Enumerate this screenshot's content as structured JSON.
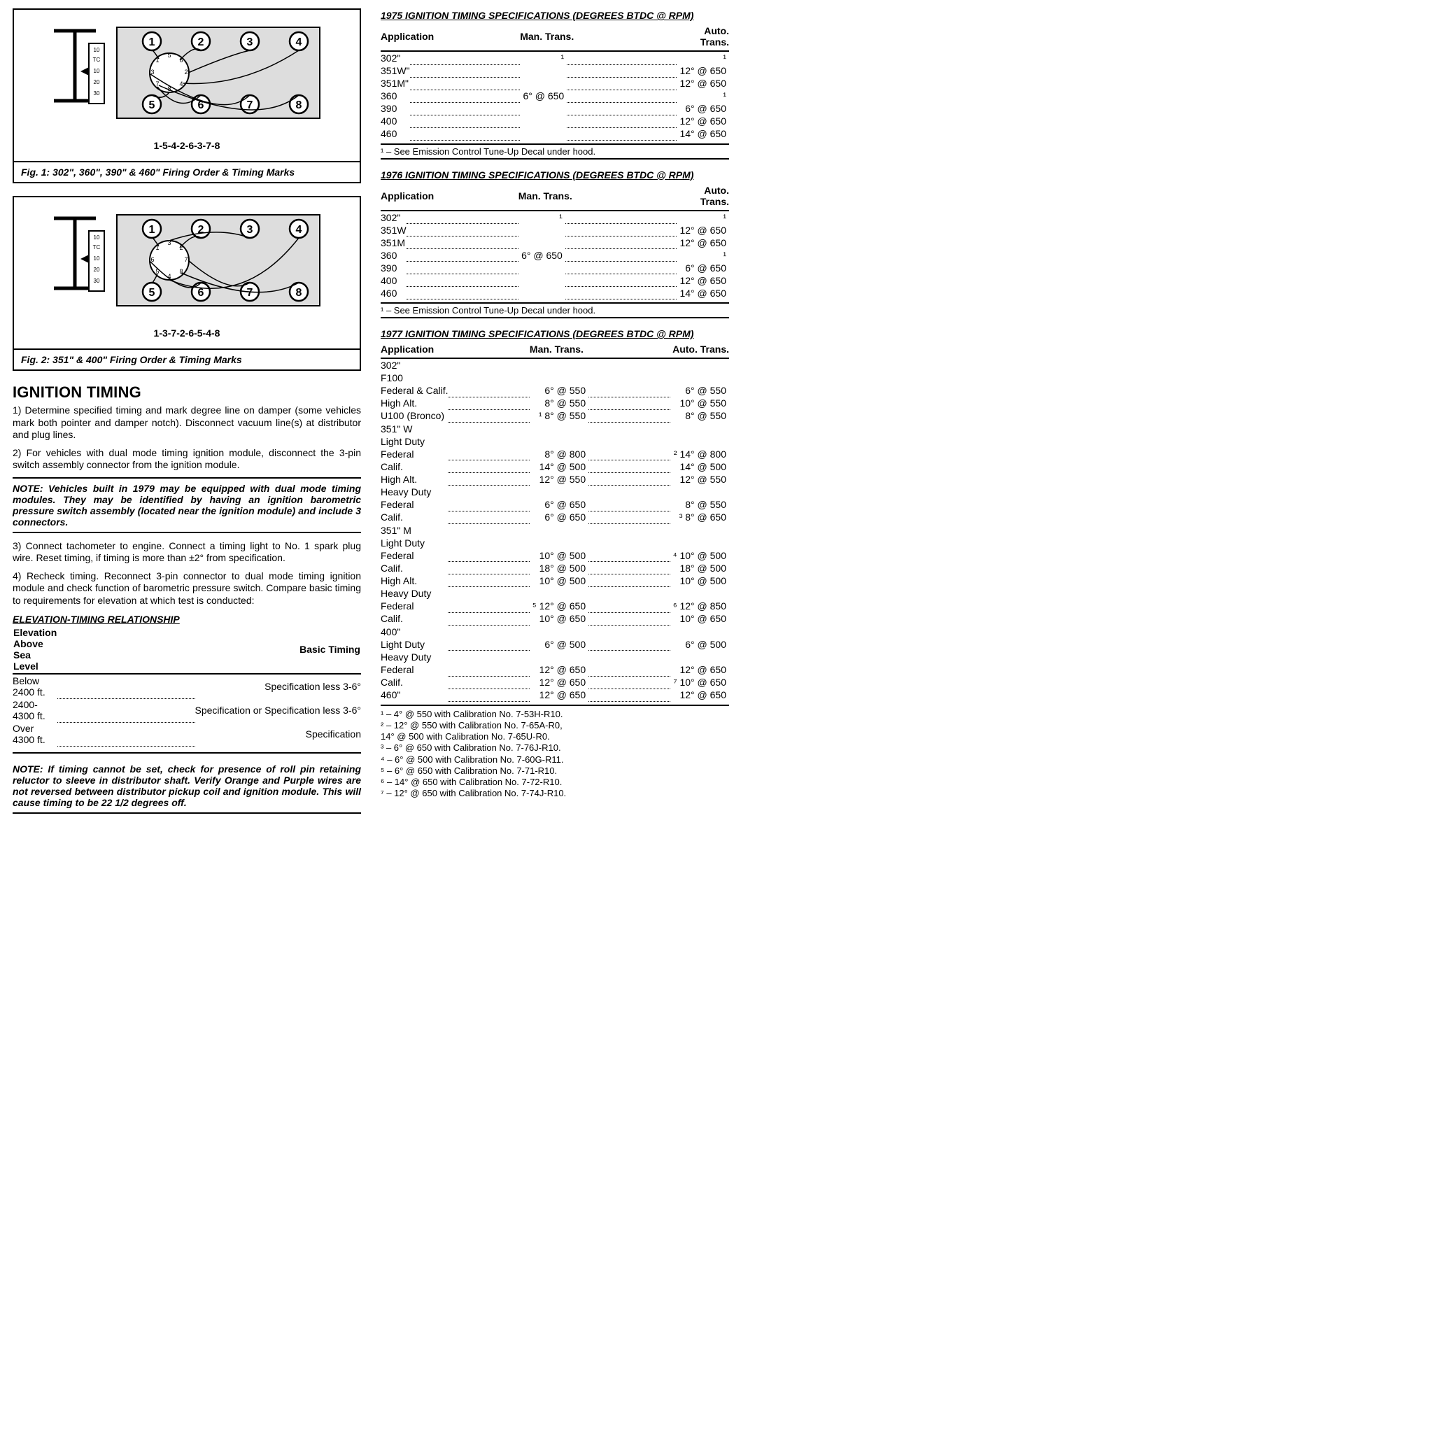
{
  "fig1": {
    "caption": "Fig. 1: 302\", 360\", 390\" & 460\" Firing Order & Timing Marks",
    "firing_order": "1-5-4-2-6-3-7-8",
    "cylinders_top": [
      1,
      2,
      3,
      4
    ],
    "cylinders_bottom": [
      5,
      6,
      7,
      8
    ],
    "dist_labels": [
      1,
      2,
      3,
      4,
      5,
      6,
      7,
      8
    ],
    "scale_labels": [
      "10",
      "TC",
      "10",
      "20",
      "30"
    ]
  },
  "fig2": {
    "caption": "Fig. 2: 351\" & 400\" Firing Order & Timing Marks",
    "firing_order": "1-3-7-2-6-5-4-8",
    "cylinders_top": [
      1,
      2,
      3,
      4
    ],
    "cylinders_bottom": [
      5,
      6,
      7,
      8
    ],
    "dist_labels": [
      1,
      2,
      3,
      4,
      5,
      6,
      7,
      8
    ],
    "scale_labels": [
      "10",
      "TC",
      "10",
      "20",
      "30"
    ]
  },
  "ignition": {
    "heading": "IGNITION TIMING",
    "p1": "1) Determine specified timing and mark degree line on damper (some vehicles mark both pointer and damper notch). Disconnect vacuum line(s) at distributor and plug lines.",
    "p2": "2) For vehicles with dual mode timing ignition module, disconnect the 3-pin switch assembly connector from the ignition module.",
    "note1": "NOTE: Vehicles built in 1979 may be equipped with dual mode timing modules. They may be identified by having an ignition barometric pressure switch assembly (located near the ignition module) and include 3 connectors.",
    "p3": "3) Connect tachometer to engine. Connect a timing light to No. 1 spark plug wire. Reset timing, if timing is more than ±2° from specification.",
    "p4": "4) Recheck timing. Reconnect 3-pin connector to dual mode timing ignition module and check function of barometric pressure switch. Compare basic timing to requirements for elevation at which test is conducted:"
  },
  "elevation": {
    "title": "ELEVATION-TIMING RELATIONSHIP",
    "head_left": "Elevation Above Sea Level",
    "head_right": "Basic Timing",
    "rows": [
      {
        "l": "Below 2400 ft.",
        "r": "Specification less 3-6°"
      },
      {
        "l": "2400-4300 ft.",
        "r": "Specification or Specification less 3-6°"
      },
      {
        "l": "Over 4300 ft.",
        "r": "Specification"
      }
    ],
    "note2": "NOTE: If timing cannot be set, check for presence of roll pin retaining reluctor to sleeve in distributor shaft. Verify Orange and Purple wires are not reversed between distributor pickup coil and ignition module. This will cause timing to be 22 1/2 degrees off."
  },
  "spec_headers": {
    "app": "Application",
    "man": "Man. Trans.",
    "auto": "Auto. Trans."
  },
  "spec1975": {
    "title": "1975 IGNITION TIMING SPECIFICATIONS (DEGREES BTDC @ RPM)",
    "rows": [
      {
        "app": "302\"",
        "man": "¹",
        "auto": "¹"
      },
      {
        "app": "351W\"",
        "man": "",
        "auto": "12° @ 650"
      },
      {
        "app": "351M\"",
        "man": "",
        "auto": "12° @ 650"
      },
      {
        "app": "360",
        "man": "6° @ 650",
        "auto": "¹"
      },
      {
        "app": "390",
        "man": "",
        "auto": "6° @ 650"
      },
      {
        "app": "400",
        "man": "",
        "auto": "12° @ 650"
      },
      {
        "app": "460",
        "man": "",
        "auto": "14° @ 650"
      }
    ],
    "footnote": "¹ – See Emission Control Tune-Up Decal under hood."
  },
  "spec1976": {
    "title": "1976 IGNITION TIMING SPECIFICATIONS (DEGREES BTDC @ RPM)",
    "rows": [
      {
        "app": "302\"",
        "man": "¹",
        "auto": "¹"
      },
      {
        "app": "351W",
        "man": "",
        "auto": "12° @ 650"
      },
      {
        "app": "351M",
        "man": "",
        "auto": "12° @ 650"
      },
      {
        "app": "360",
        "man": "6° @ 650",
        "auto": "¹"
      },
      {
        "app": "390",
        "man": "",
        "auto": "6° @ 650"
      },
      {
        "app": "400",
        "man": "",
        "auto": "12° @ 650"
      },
      {
        "app": "460",
        "man": "",
        "auto": "14° @ 650"
      }
    ],
    "footnote": "¹ – See Emission Control Tune-Up Decal under hood."
  },
  "spec1977": {
    "title": "1977 IGNITION TIMING SPECIFICATIONS (DEGREES BTDC @ RPM)",
    "rows": [
      {
        "app": "302\"",
        "man": "",
        "auto": "",
        "indent": 0,
        "nodata": true
      },
      {
        "app": "F100",
        "man": "",
        "auto": "",
        "indent": 1,
        "nodata": true
      },
      {
        "app": "Federal & Calif.",
        "man": "6° @ 550",
        "auto": "6° @ 550",
        "indent": 2
      },
      {
        "app": "High Alt.",
        "man": "8° @ 550",
        "auto": "10° @ 550",
        "indent": 2
      },
      {
        "app": "U100 (Bronco)",
        "man": "¹ 8° @ 550",
        "auto": "8° @ 550",
        "indent": 1
      },
      {
        "app": "351\" W",
        "man": "",
        "auto": "",
        "indent": 0,
        "nodata": true
      },
      {
        "app": "Light Duty",
        "man": "",
        "auto": "",
        "indent": 1,
        "nodata": true
      },
      {
        "app": "Federal",
        "man": "8° @ 800",
        "auto": "² 14° @ 800",
        "indent": 2
      },
      {
        "app": "Calif.",
        "man": "14° @ 500",
        "auto": "14° @ 500",
        "indent": 2
      },
      {
        "app": "High Alt.",
        "man": "12° @ 550",
        "auto": "12° @ 550",
        "indent": 2
      },
      {
        "app": "Heavy Duty",
        "man": "",
        "auto": "",
        "indent": 1,
        "nodata": true
      },
      {
        "app": "Federal",
        "man": "6° @ 650",
        "auto": "8° @ 550",
        "indent": 2
      },
      {
        "app": "Calif.",
        "man": "6° @ 650",
        "auto": "³ 8° @ 650",
        "indent": 2
      },
      {
        "app": "351\" M",
        "man": "",
        "auto": "",
        "indent": 0,
        "nodata": true
      },
      {
        "app": "Light Duty",
        "man": "",
        "auto": "",
        "indent": 1,
        "nodata": true
      },
      {
        "app": "Federal",
        "man": "10° @ 500",
        "auto": "⁴ 10° @ 500",
        "indent": 2
      },
      {
        "app": "Calif.",
        "man": "18° @ 500",
        "auto": "18° @ 500",
        "indent": 2
      },
      {
        "app": "High Alt.",
        "man": "10° @ 500",
        "auto": "10° @ 500",
        "indent": 2
      },
      {
        "app": "Heavy Duty",
        "man": "",
        "auto": "",
        "indent": 1,
        "nodata": true
      },
      {
        "app": "Federal",
        "man": "⁵ 12° @ 650",
        "auto": "⁶ 12° @ 850",
        "indent": 2
      },
      {
        "app": "Calif.",
        "man": "10° @ 650",
        "auto": "10° @ 650",
        "indent": 2
      },
      {
        "app": "400\"",
        "man": "",
        "auto": "",
        "indent": 0,
        "nodata": true
      },
      {
        "app": "Light Duty",
        "man": "6° @ 500",
        "auto": "6° @ 500",
        "indent": 1
      },
      {
        "app": "Heavy Duty",
        "man": "",
        "auto": "",
        "indent": 1,
        "nodata": true
      },
      {
        "app": "Federal",
        "man": "12° @ 650",
        "auto": "12° @ 650",
        "indent": 2
      },
      {
        "app": "Calif.",
        "man": "12° @ 650",
        "auto": "⁷ 10° @ 650",
        "indent": 2
      },
      {
        "app": "460\"",
        "man": "12° @ 650",
        "auto": "12° @ 650",
        "indent": 0
      }
    ],
    "footnotes": [
      "¹ – 4° @ 550 with Calibration No. 7-53H-R10.",
      "² – 12° @ 550 with Calibration No. 7-65A-R0,",
      "     14° @ 500 with Calibration No. 7-65U-R0.",
      "³ – 6° @ 650 with Calibration No. 7-76J-R10.",
      "⁴ – 6° @ 500 with Calibration No. 7-60G-R11.",
      "⁵ – 6° @ 650 with Calibration No. 7-71-R10.",
      "⁶ – 14° @ 650 with Calibration No. 7-72-R10.",
      "⁷ – 12° @ 650 with Calibration No. 7-74J-R10."
    ]
  }
}
